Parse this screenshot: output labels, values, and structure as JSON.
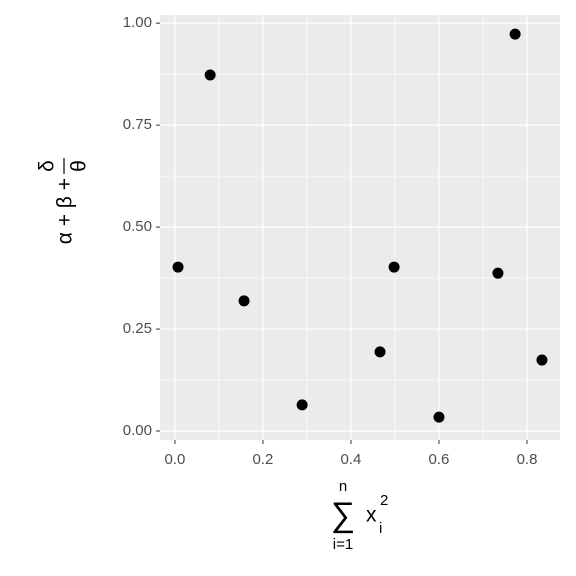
{
  "chart_data": {
    "type": "scatter",
    "x": [
      0.007,
      0.08,
      0.157,
      0.289,
      0.466,
      0.498,
      0.6,
      0.734,
      0.773,
      0.834
    ],
    "values": [
      0.402,
      0.873,
      0.319,
      0.064,
      0.194,
      0.402,
      0.034,
      0.387,
      0.973,
      0.174
    ],
    "color": "#000000",
    "xlim": [
      -0.034,
      0.875
    ],
    "ylim": [
      -0.022,
      1.02
    ],
    "xticks": [
      {
        "value": 0,
        "label": "0.0"
      },
      0.2,
      0.4,
      0.6,
      0.8
    ],
    "yticks": [
      {
        "value": 0,
        "label": "0.00"
      },
      0.25,
      {
        "value": 0.5,
        "label": "0.50"
      },
      0.75,
      {
        "value": 1,
        "label": "1.00"
      }
    ],
    "grid": true,
    "minor_grid": true,
    "x_label": {
      "operator": "∑",
      "upper": "n",
      "lower": "i=1",
      "base": "x",
      "sub": "i",
      "sup": "2"
    },
    "y_label": {
      "terms": "α + β +",
      "numerator": "δ",
      "denominator": "θ"
    }
  }
}
